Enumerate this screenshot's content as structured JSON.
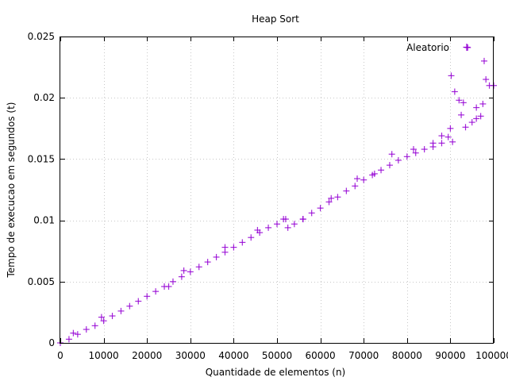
{
  "chart_data": {
    "type": "scatter",
    "title": "Heap Sort",
    "xlabel": "Quantidade de elementos (n)",
    "ylabel": "Tempo de execucao em segundos (t)",
    "xlim": [
      0,
      100000
    ],
    "ylim": [
      0,
      0.025
    ],
    "x_ticks": [
      0,
      10000,
      20000,
      30000,
      40000,
      50000,
      60000,
      70000,
      80000,
      90000,
      100000
    ],
    "x_tick_labels": [
      "0",
      "10000",
      "20000",
      "30000",
      "40000",
      "50000",
      "60000",
      "70000",
      "80000",
      "90000",
      "100000"
    ],
    "y_ticks": [
      0,
      0.005,
      0.01,
      0.015,
      0.02,
      0.025
    ],
    "y_tick_labels": [
      "0",
      "0.005",
      "0.01",
      "0.015",
      "0.02",
      "0.025"
    ],
    "grid": true,
    "legend_position": "top-right",
    "marker": "plus",
    "series": [
      {
        "name": "Aleatorio",
        "color": "#9400d3",
        "points": [
          [
            0,
            0.0
          ],
          [
            2000,
            0.0003
          ],
          [
            4000,
            0.0007
          ],
          [
            6000,
            0.0011
          ],
          [
            8000,
            0.0014
          ],
          [
            10000,
            0.0018
          ],
          [
            12000,
            0.0022
          ],
          [
            14000,
            0.0026
          ],
          [
            16000,
            0.003
          ],
          [
            18000,
            0.0034
          ],
          [
            20000,
            0.0038
          ],
          [
            22000,
            0.0042
          ],
          [
            24000,
            0.0046
          ],
          [
            26000,
            0.005
          ],
          [
            28000,
            0.0054
          ],
          [
            30000,
            0.0058
          ],
          [
            32000,
            0.0062
          ],
          [
            34000,
            0.0066
          ],
          [
            36000,
            0.007
          ],
          [
            38000,
            0.0074
          ],
          [
            40000,
            0.0078
          ],
          [
            42000,
            0.0082
          ],
          [
            44000,
            0.0086
          ],
          [
            46000,
            0.009
          ],
          [
            48000,
            0.0094
          ],
          [
            50000,
            0.0097
          ],
          [
            52000,
            0.0101
          ],
          [
            52500,
            0.0094
          ],
          [
            54000,
            0.0097
          ],
          [
            56000,
            0.0101
          ],
          [
            58000,
            0.0106
          ],
          [
            60000,
            0.011
          ],
          [
            62000,
            0.0115
          ],
          [
            64000,
            0.0119
          ],
          [
            66000,
            0.0124
          ],
          [
            68000,
            0.0128
          ],
          [
            70000,
            0.0133
          ],
          [
            72000,
            0.0137
          ],
          [
            74000,
            0.0141
          ],
          [
            76000,
            0.0145
          ],
          [
            78000,
            0.0149
          ],
          [
            80000,
            0.0152
          ],
          [
            82000,
            0.0155
          ],
          [
            84000,
            0.0158
          ],
          [
            86000,
            0.016
          ],
          [
            88000,
            0.0163
          ],
          [
            89500,
            0.0168
          ],
          [
            90000,
            0.0175
          ],
          [
            90200,
            0.0218
          ],
          [
            91000,
            0.0205
          ],
          [
            92000,
            0.0198
          ],
          [
            93000,
            0.0196
          ],
          [
            93500,
            0.0176
          ],
          [
            94000,
            0.0241
          ],
          [
            95000,
            0.018
          ],
          [
            96000,
            0.0183
          ],
          [
            97000,
            0.0185
          ],
          [
            97500,
            0.0195
          ],
          [
            97800,
            0.023
          ],
          [
            98200,
            0.0215
          ],
          [
            99000,
            0.021
          ],
          [
            100000,
            0.021
          ],
          [
            3000,
            0.0008
          ],
          [
            9500,
            0.0021
          ],
          [
            25000,
            0.0046
          ],
          [
            28500,
            0.0059
          ],
          [
            38000,
            0.0078
          ],
          [
            45500,
            0.0092
          ],
          [
            51500,
            0.0101
          ],
          [
            56000,
            0.0101
          ],
          [
            62500,
            0.0118
          ],
          [
            68500,
            0.0134
          ],
          [
            72500,
            0.0138
          ],
          [
            76500,
            0.0154
          ],
          [
            81500,
            0.0158
          ],
          [
            86000,
            0.0163
          ],
          [
            88000,
            0.0169
          ],
          [
            90500,
            0.0164
          ],
          [
            92500,
            0.0186
          ],
          [
            96000,
            0.0192
          ]
        ]
      }
    ]
  }
}
